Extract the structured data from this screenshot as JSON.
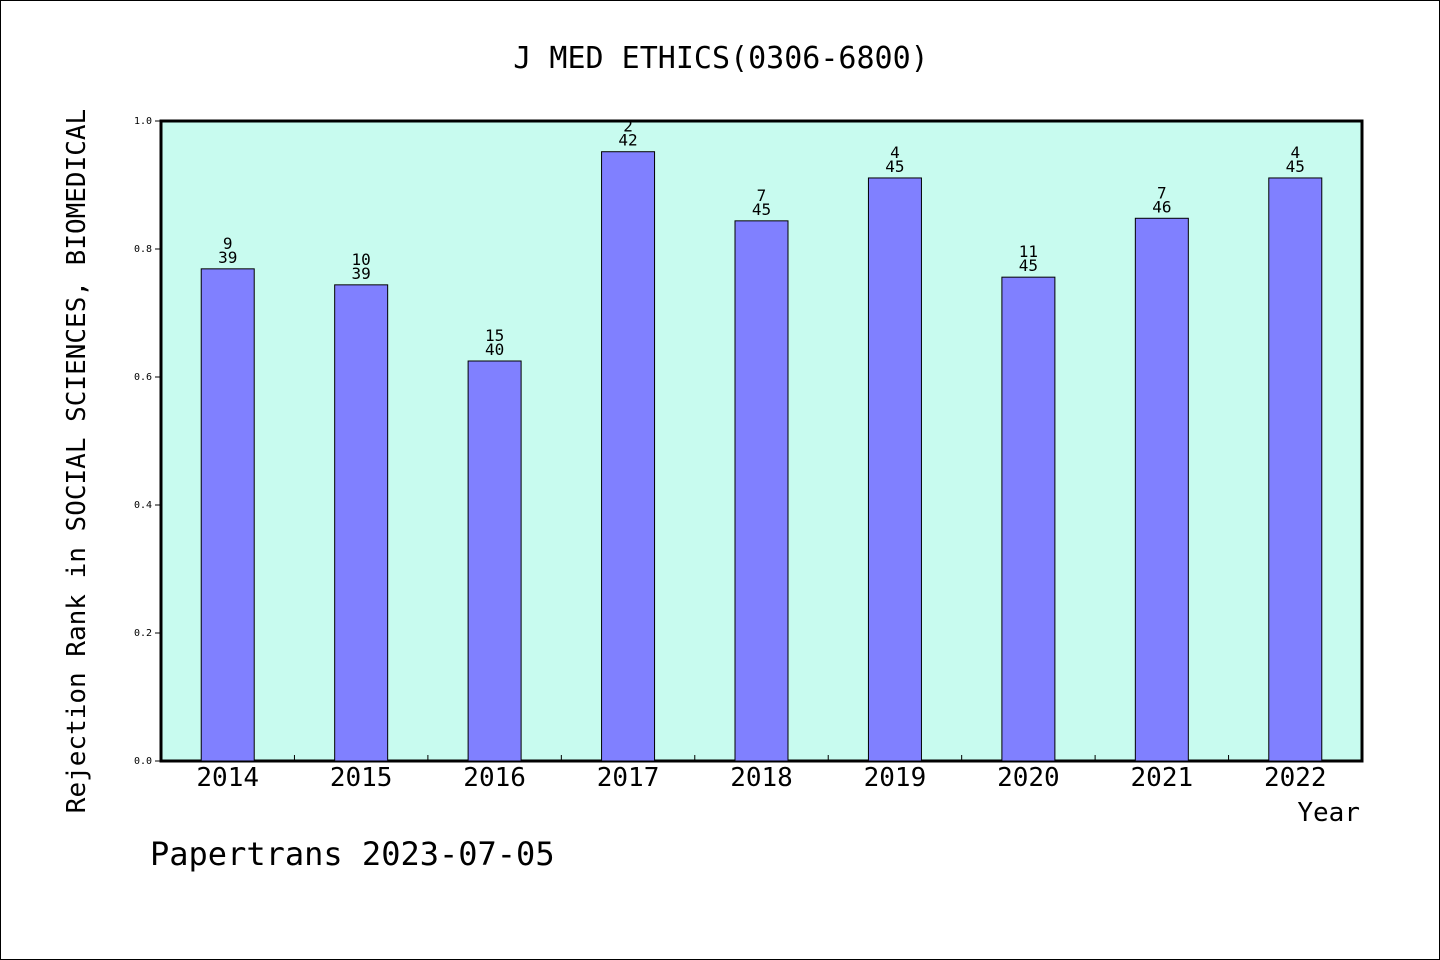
{
  "chart_data": {
    "type": "bar",
    "title": "J MED ETHICS(0306-6800)",
    "ylabel": "Rejection Rank in SOCIAL SCIENCES, BIOMEDICAL",
    "xlabel": "Year",
    "ylim": [
      0,
      1.0
    ],
    "yticks": [
      "0.0",
      "0.2",
      "0.4",
      "0.6",
      "0.8",
      "1.0"
    ],
    "grid": false,
    "categories": [
      "2014",
      "2015",
      "2016",
      "2017",
      "2018",
      "2019",
      "2020",
      "2021",
      "2022"
    ],
    "values": [
      0.769,
      0.744,
      0.625,
      0.952,
      0.844,
      0.911,
      0.756,
      0.848,
      0.911
    ],
    "rank": [
      "9",
      "10",
      "15",
      "2",
      "7",
      "4",
      "11",
      "7",
      "4"
    ],
    "total": [
      "39",
      "39",
      "40",
      "42",
      "45",
      "45",
      "45",
      "46",
      "45"
    ],
    "colors": {
      "bar": "#8080ff",
      "plot_bg": "#c8fbef",
      "axis": "#000000"
    }
  },
  "footer": "Papertrans 2023-07-05"
}
